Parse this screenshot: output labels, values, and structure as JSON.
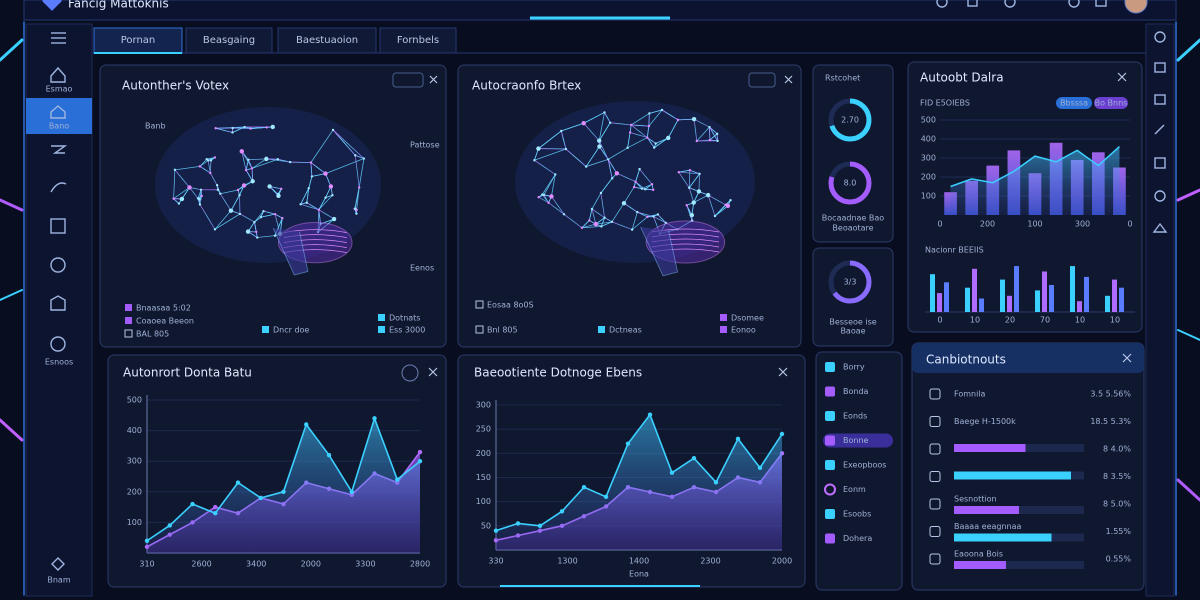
{
  "app": {
    "title": "Fancig Mattoknis"
  },
  "sidebar": [
    "Esmao",
    "Bano",
    "Esnoos",
    "Bnam"
  ],
  "tabs": [
    "Pornan",
    "Beasgaing",
    "Baestuaoion",
    "Fornbels"
  ],
  "brain_left": {
    "title": "Autonther's Votex",
    "tags": [
      "Banb",
      "Pattose",
      "Eenos"
    ],
    "legend": [
      "Bnaasaa 5:02",
      "Coaoea Beeon",
      "BAL 805",
      "Dncr doe",
      "Dotnats",
      "Ess 3000"
    ]
  },
  "brain_right": {
    "title": "Autocraonfo Brtex",
    "legend": [
      "Eosaa 8o0S",
      "Bnl 805",
      "Dctneas",
      "Dsomee",
      "Eonoo"
    ]
  },
  "gauges": {
    "title": "Rstcohet",
    "items": [
      {
        "label": "2.70",
        "percent": 70,
        "color": "#3ad0ff"
      },
      {
        "label": "8.0",
        "percent": 80,
        "color": "#a45cff"
      },
      {
        "label": "3/3",
        "percent": 65,
        "color": "#8a6bff"
      }
    ],
    "captions": [
      "Bocaadnae Bao",
      "Beoaotare",
      "Besseoe ise",
      "Baoae"
    ]
  },
  "analytics": {
    "title": "Autoobt Dalra",
    "subtitle": "FID E5OIEBS",
    "pills": [
      "Bbsssa",
      "Bo Bnns"
    ],
    "ylim": [
      0,
      500
    ],
    "yticks": [
      100,
      200,
      300,
      400,
      500
    ],
    "categories": [
      "0",
      "200",
      "100",
      "300",
      "0"
    ],
    "bars": [
      120,
      180,
      260,
      340,
      220,
      380,
      290,
      330,
      250
    ],
    "line": [
      150,
      190,
      170,
      230,
      310,
      280,
      340,
      260,
      360
    ],
    "bars_title": "Nacionr BEEIIS",
    "groups": [
      [
        70,
        35,
        55
      ],
      [
        45,
        80,
        25
      ],
      [
        60,
        30,
        85
      ],
      [
        40,
        75,
        50
      ],
      [
        85,
        20,
        65
      ],
      [
        30,
        60,
        45
      ]
    ],
    "group_labels": [
      "0",
      "10",
      "20",
      "70",
      "10",
      "10"
    ],
    "group_max": 100
  },
  "area_left": {
    "title": "Autonrort Donta Batu",
    "ylim": [
      0,
      500
    ],
    "yticks": [
      100,
      200,
      300,
      400,
      500
    ],
    "categories": [
      "310",
      "2600",
      "3400",
      "2000",
      "3300",
      "2800"
    ],
    "series": [
      {
        "color": "#3ad0ff",
        "values": [
          40,
          90,
          160,
          130,
          230,
          180,
          200,
          420,
          320,
          200,
          440,
          240,
          300
        ]
      },
      {
        "color": "#b06cff",
        "values": [
          20,
          60,
          100,
          150,
          130,
          180,
          160,
          230,
          210,
          190,
          260,
          230,
          330
        ]
      }
    ]
  },
  "area_right": {
    "title": "Baeootiente Dotnoge Ebens",
    "ylim": [
      0,
      300
    ],
    "yticks": [
      50,
      100,
      150,
      200,
      250,
      300
    ],
    "categories": [
      "330",
      "1300",
      "1400",
      "2300",
      "2000"
    ],
    "xlabel": "Eona",
    "series": [
      {
        "color": "#3ad0ff",
        "values": [
          40,
          55,
          50,
          80,
          130,
          110,
          220,
          280,
          160,
          190,
          140,
          230,
          170,
          240
        ]
      },
      {
        "color": "#b06cff",
        "values": [
          20,
          30,
          40,
          50,
          70,
          90,
          130,
          120,
          110,
          130,
          120,
          150,
          140,
          200
        ]
      }
    ]
  },
  "list": {
    "items": [
      "Borry",
      "Bonda",
      "Eonds",
      "Bonne",
      "Exeopboos",
      "Eonm",
      "Esoobs",
      "Dohera"
    ]
  },
  "components": {
    "title": "Canbiotnouts",
    "rows": [
      {
        "label": "Fomnila",
        "value": "3.5 5.56%"
      },
      {
        "label": "Baege H-1500k",
        "value": "18.5 5.3%"
      },
      {
        "label": "",
        "value": "8 4.0%",
        "fill": 0.55
      },
      {
        "label": "",
        "value": "8 3.5%",
        "fill": 0.9
      },
      {
        "label": "Sesnottion",
        "value": "8 5.0%",
        "fill": 0.5
      },
      {
        "label": "Baaaa eeagnnaa",
        "value": "1.55%",
        "fill": 0.75
      },
      {
        "label": "Eaoona Bois",
        "value": "0.55%",
        "fill": 0.4
      }
    ]
  }
}
